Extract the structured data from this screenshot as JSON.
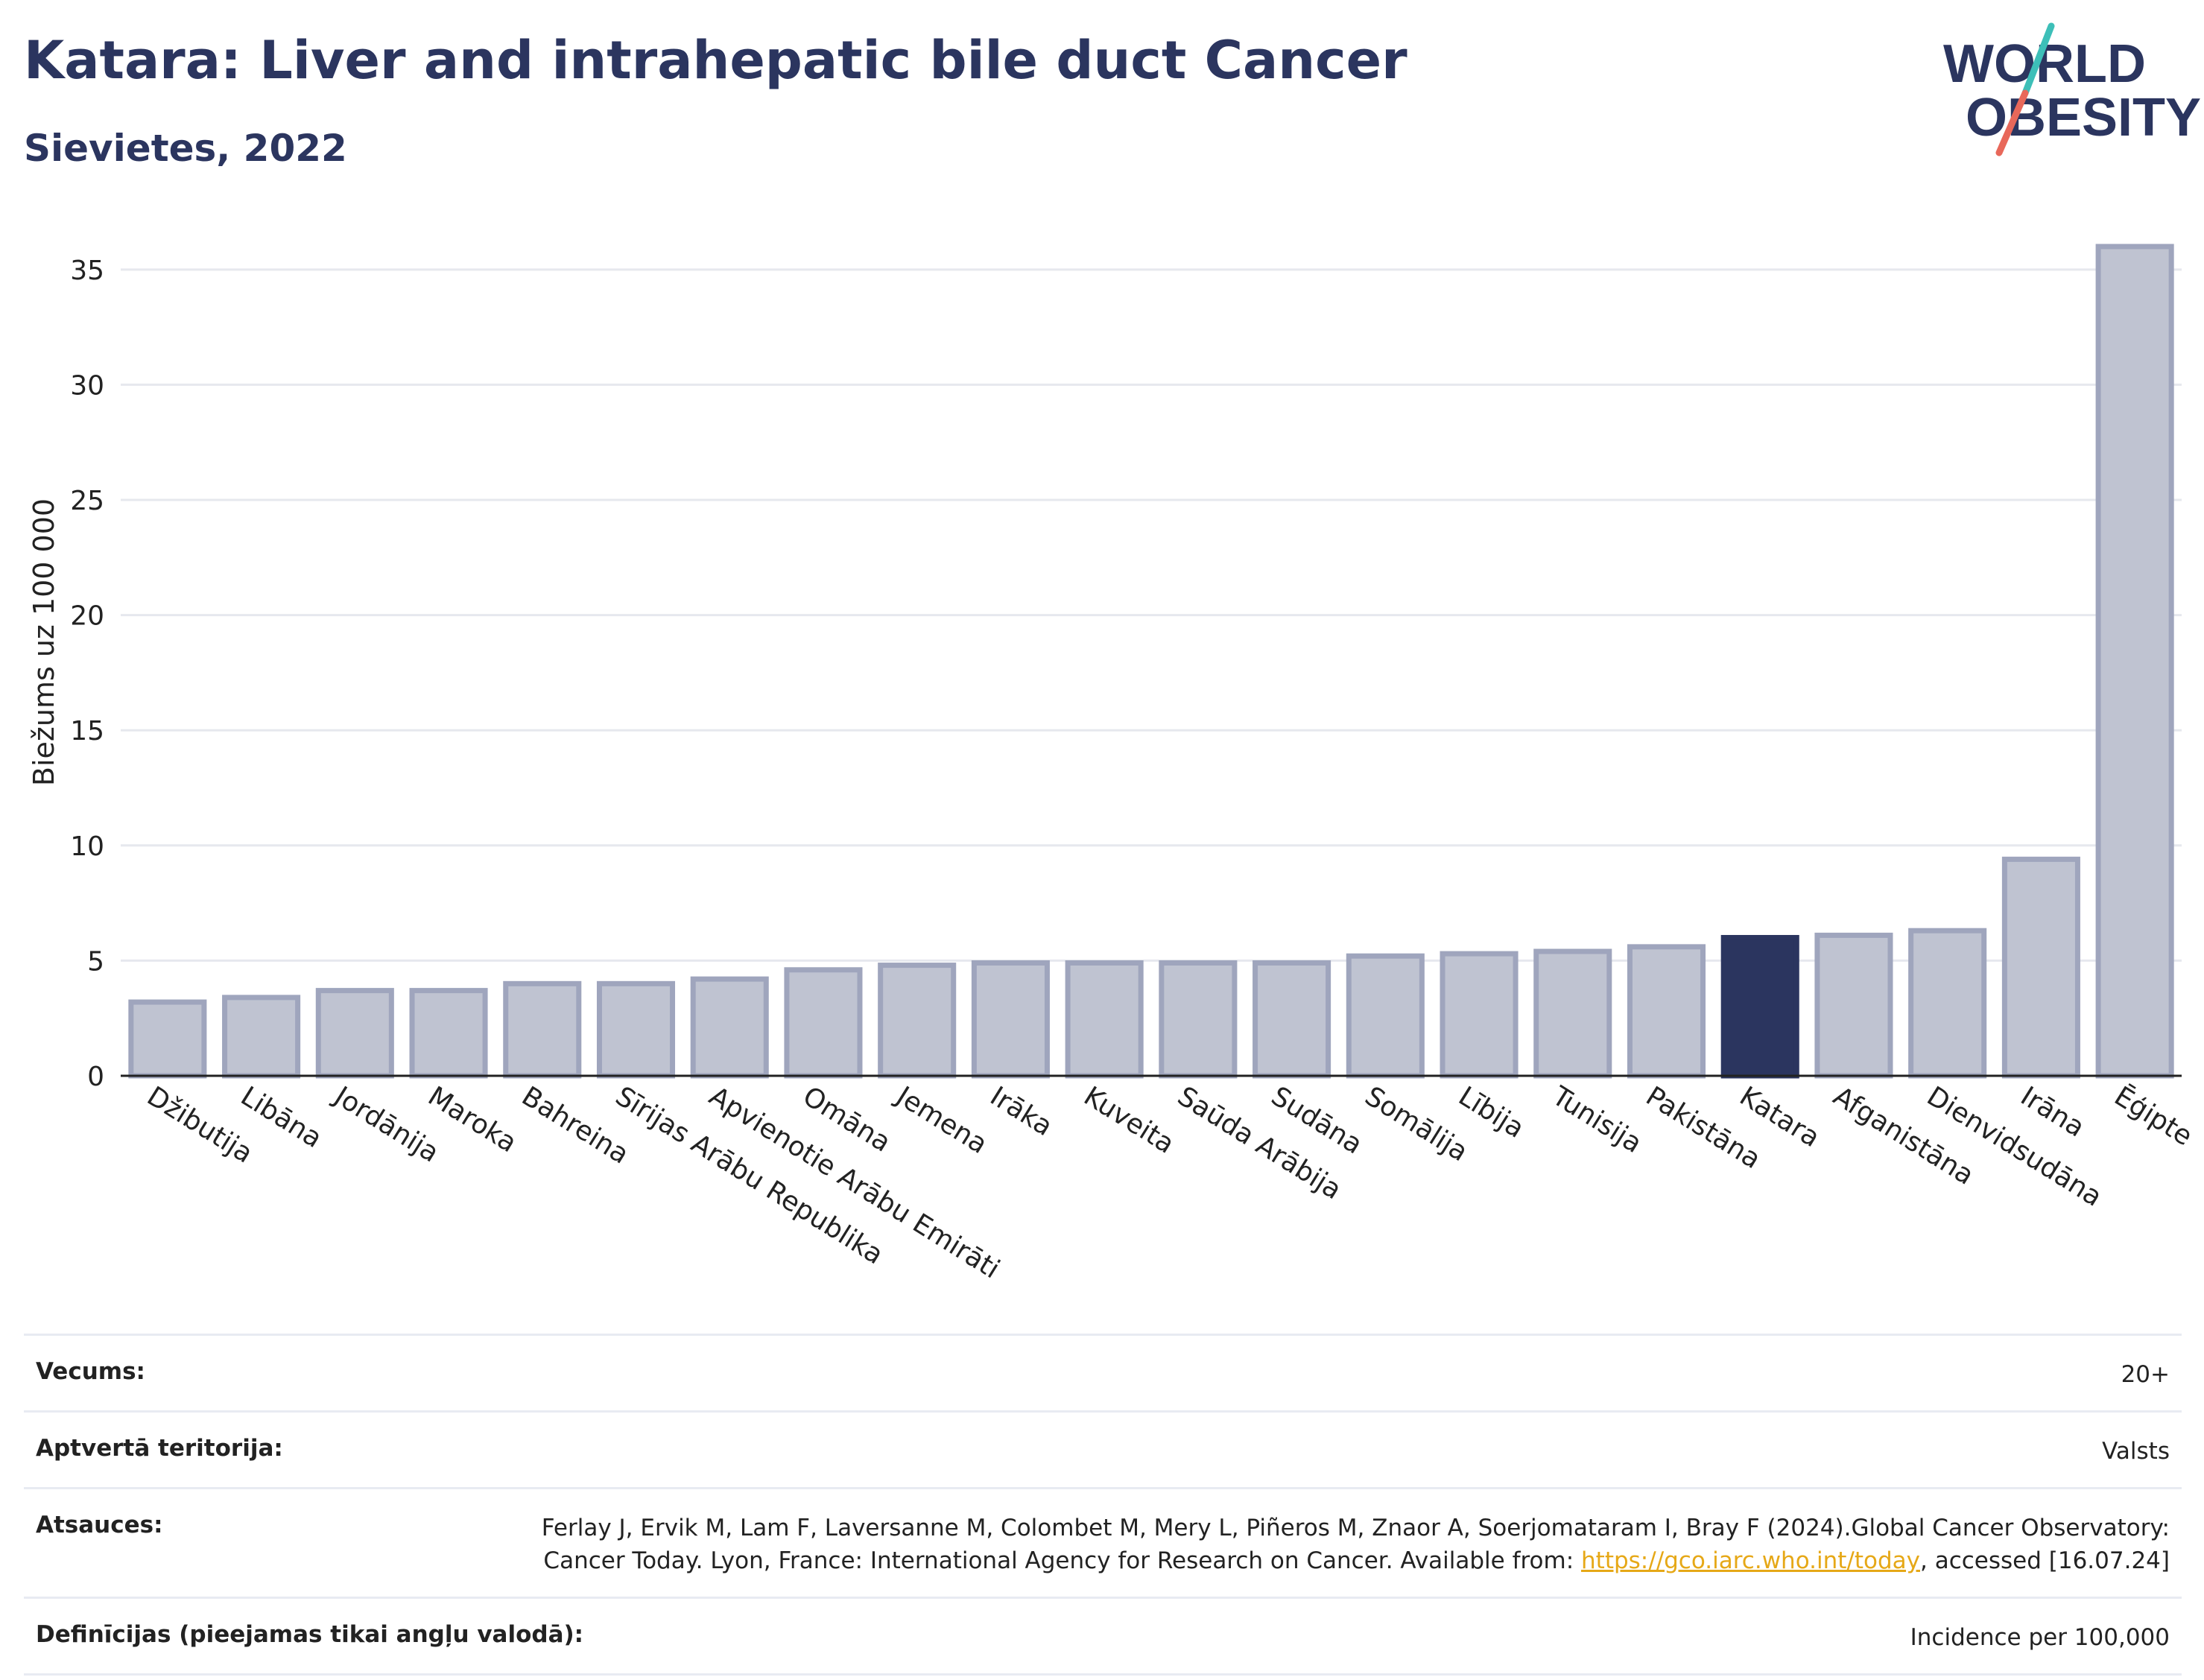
{
  "header": {
    "title": "Katara: Liver and intrahepatic bile duct Cancer",
    "subtitle": "Sievietes, 2022"
  },
  "logo": {
    "line1": "WORLD",
    "line2": "OBESITY",
    "colors": {
      "text": "#2b355f",
      "slash_top": "#3dbfb8",
      "slash_bottom": "#e8685a"
    }
  },
  "chart_data": {
    "type": "bar",
    "ylabel": "Biežums uz 100 000",
    "xlabel": "",
    "ylim": [
      0,
      37
    ],
    "yticks": [
      0,
      5,
      10,
      15,
      20,
      25,
      30,
      35
    ],
    "grid": true,
    "highlight": "Katara",
    "colors": {
      "bar": "#bfc3d1",
      "bar_edge": "#9fa5bd",
      "highlight": "#2b355f",
      "grid": "#e6e8ee"
    },
    "categories": [
      "Džibutija",
      "Libāna",
      "Jordānija",
      "Maroka",
      "Bahreina",
      "Sīrijas Arābu Republika",
      "Apvienotie Arābu Emirāti",
      "Omāna",
      "Jemena",
      "Irāka",
      "Kuveita",
      "Saūda Arābija",
      "Sudāna",
      "Somālija",
      "Lībija",
      "Tunisija",
      "Pakistāna",
      "Katara",
      "Afganistāna",
      "Dienvidsudāna",
      "Irāna",
      "Ēģipte"
    ],
    "values": [
      3.2,
      3.4,
      3.7,
      3.7,
      4.0,
      4.0,
      4.2,
      4.6,
      4.8,
      4.9,
      4.9,
      4.9,
      4.9,
      5.2,
      5.3,
      5.4,
      5.6,
      6.0,
      6.1,
      6.3,
      9.4,
      36.0
    ]
  },
  "meta": {
    "age_label": "Vecums:",
    "age_value": "20+",
    "coverage_label": "Aptvertā teritorija:",
    "coverage_value": "Valsts",
    "refs_label": "Atsauces:",
    "refs_text_1": "Ferlay J, Ervik M, Lam F, Laversanne M, Colombet M, Mery L, Piñeros M, Znaor A, Soerjomataram I, Bray F (2024).Global Cancer Observatory: Cancer Today. Lyon, France: International Agency for Research on Cancer. Available from: ",
    "refs_link": "https://gco.iarc.who.int/today",
    "refs_text_2": ", accessed [16.07.24]",
    "defs_label": "Definīcijas (pieejamas tikai angļu valodā):",
    "defs_value": "Incidence per 100,000"
  }
}
